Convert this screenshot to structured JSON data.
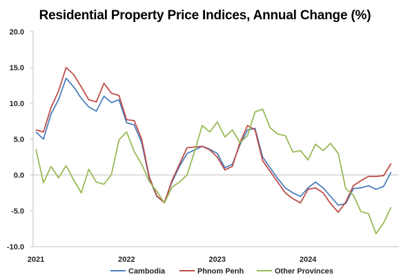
{
  "chart_data": {
    "type": "line",
    "title": "Residential Property Price Indices, Annual Change (%)",
    "xlabel": "",
    "ylabel": "",
    "ylim": [
      -10,
      20
    ],
    "yticks": [
      "20.0",
      "15.0",
      "10.0",
      "5.0",
      "0.0",
      "-5.0",
      "-10.0"
    ],
    "xticks": [
      "2021",
      "2022",
      "2023",
      "2024"
    ],
    "x_start_year": 2021,
    "legend_position": "bottom",
    "grid": false,
    "series": [
      {
        "name": "Cambodia",
        "color": "#4a7ebb",
        "values": [
          6.0,
          5.0,
          8.5,
          10.5,
          13.5,
          12.3,
          10.7,
          9.5,
          8.9,
          11.0,
          10.1,
          10.5,
          7.3,
          7.0,
          4.5,
          -0.5,
          -3.0,
          -3.8,
          -1.0,
          1.2,
          3.0,
          3.5,
          4.0,
          3.6,
          3.0,
          1.0,
          1.5,
          4.2,
          6.3,
          6.5,
          2.5,
          1.0,
          -0.5,
          -1.8,
          -2.5,
          -3.0,
          -1.8,
          -1.0,
          -1.8,
          -3.0,
          -4.2,
          -4.0,
          -1.9,
          -1.8,
          -1.5,
          -2.0,
          -1.6,
          0.4
        ]
      },
      {
        "name": "Phnom Penh",
        "color": "#be4b48",
        "values": [
          6.3,
          6.0,
          9.4,
          11.7,
          15.0,
          14.0,
          12.3,
          10.5,
          10.2,
          12.8,
          11.4,
          11.1,
          7.7,
          7.6,
          5.0,
          -0.3,
          -2.9,
          -3.9,
          -0.8,
          1.5,
          3.8,
          3.9,
          4.0,
          3.5,
          2.5,
          0.7,
          1.2,
          4.5,
          6.9,
          6.3,
          2.0,
          0.5,
          -1.0,
          -2.5,
          -3.3,
          -3.9,
          -2.0,
          -1.8,
          -2.5,
          -4.0,
          -5.2,
          -3.8,
          -1.5,
          -0.8,
          -0.2,
          -0.2,
          -0.1,
          1.6
        ]
      },
      {
        "name": "Other Provinces",
        "color": "#98b954",
        "values": [
          3.6,
          -1.1,
          1.2,
          -0.4,
          1.3,
          -0.7,
          -2.5,
          0.8,
          -1.0,
          -1.3,
          0.1,
          4.9,
          6.0,
          3.3,
          1.5,
          -0.9,
          -2.3,
          -3.9,
          -1.7,
          -1.0,
          0.0,
          3.3,
          6.9,
          6.0,
          7.4,
          5.3,
          6.3,
          4.5,
          5.5,
          8.8,
          9.2,
          6.6,
          5.7,
          5.5,
          3.2,
          3.4,
          2.1,
          4.3,
          3.4,
          4.4,
          3.0,
          -1.9,
          -2.8,
          -5.1,
          -5.4,
          -8.2,
          -6.7,
          -4.5
        ]
      }
    ]
  }
}
